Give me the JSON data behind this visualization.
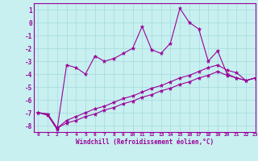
{
  "xlabel": "Windchill (Refroidissement éolien,°C)",
  "bg_color": "#c8f0f0",
  "line_color": "#990099",
  "grid_color": "#aadddd",
  "xlim": [
    -0.5,
    23
  ],
  "ylim": [
    -8.5,
    1.5
  ],
  "xticks": [
    0,
    1,
    2,
    3,
    4,
    5,
    6,
    7,
    8,
    9,
    10,
    11,
    12,
    13,
    14,
    15,
    16,
    17,
    18,
    19,
    20,
    21,
    22,
    23
  ],
  "yticks": [
    1,
    0,
    -1,
    -2,
    -3,
    -4,
    -5,
    -6,
    -7,
    -8
  ],
  "line1": [
    -7.0,
    -7.2,
    -8.3,
    -3.3,
    -3.5,
    -4.0,
    -2.6,
    -3.0,
    -2.8,
    -2.4,
    -2.0,
    -0.3,
    -2.1,
    -2.4,
    -1.6,
    1.1,
    0.0,
    -0.5,
    -3.0,
    -2.2,
    -4.0,
    -4.3,
    -4.5,
    -4.3
  ],
  "line2": [
    -7.0,
    -7.1,
    -8.2,
    -7.6,
    -7.3,
    -7.0,
    -6.7,
    -6.5,
    -6.2,
    -5.9,
    -5.7,
    -5.4,
    -5.1,
    -4.9,
    -4.6,
    -4.3,
    -4.1,
    -3.8,
    -3.5,
    -3.3,
    -3.7,
    -3.9,
    -4.5,
    -4.3
  ],
  "line3": [
    -7.0,
    -7.1,
    -8.2,
    -7.8,
    -7.6,
    -7.3,
    -7.1,
    -6.8,
    -6.6,
    -6.3,
    -6.1,
    -5.8,
    -5.6,
    -5.3,
    -5.1,
    -4.8,
    -4.6,
    -4.3,
    -4.1,
    -3.8,
    -4.1,
    -4.3,
    -4.5,
    -4.3
  ]
}
